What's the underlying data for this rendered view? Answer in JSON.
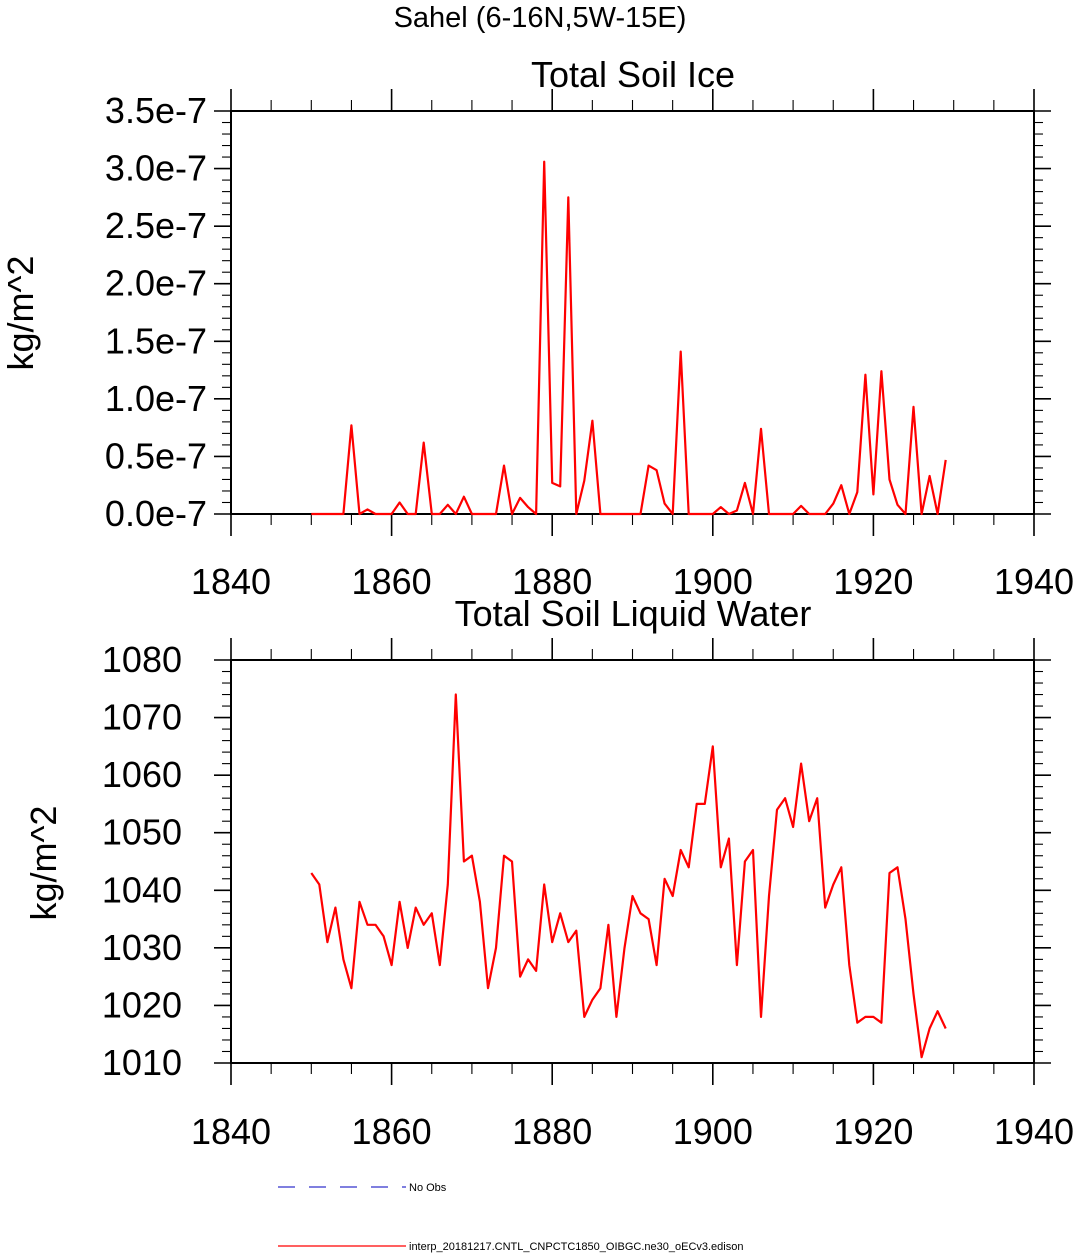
{
  "figure_title": "Sahel (6-16N,5W-15E)",
  "colors": {
    "model": "#ff0000",
    "obs": "#3333cc",
    "axis": "#000000"
  },
  "legend": {
    "obs_label": "No Obs",
    "model_label": "interp_20181217.CNTL_CNPCTC1850_OIBGC.ne30_oECv3.edison"
  },
  "chart_data": [
    {
      "type": "line",
      "title": "Total Soil Ice",
      "ylabel": "kg/m^2",
      "xlabel": "",
      "xlim": [
        1840,
        1940
      ],
      "ylim": [
        0,
        3.5e-07
      ],
      "xticks": [
        1840,
        1860,
        1880,
        1900,
        1920,
        1940
      ],
      "yticks": [
        0,
        5e-08,
        1e-07,
        1.5e-07,
        2e-07,
        2.5e-07,
        3e-07,
        3.5e-07
      ],
      "ytick_labels": [
        "0.0e-7",
        "0.5e-7",
        "1.0e-7",
        "1.5e-7",
        "2.0e-7",
        "2.5e-7",
        "3.0e-7",
        "3.5e-7"
      ],
      "series": [
        {
          "name": "interp_20181217.CNTL_CNPCTC1850_OIBGC.ne30_oECv3.edison",
          "x": [
            1850,
            1851,
            1852,
            1853,
            1854,
            1855,
            1856,
            1857,
            1858,
            1859,
            1860,
            1861,
            1862,
            1863,
            1864,
            1865,
            1866,
            1867,
            1868,
            1869,
            1870,
            1871,
            1872,
            1873,
            1874,
            1875,
            1876,
            1877,
            1878,
            1879,
            1880,
            1881,
            1882,
            1883,
            1884,
            1885,
            1886,
            1887,
            1888,
            1889,
            1890,
            1891,
            1892,
            1893,
            1894,
            1895,
            1896,
            1897,
            1898,
            1899,
            1900,
            1901,
            1902,
            1903,
            1904,
            1905,
            1906,
            1907,
            1908,
            1909,
            1910,
            1911,
            1912,
            1913,
            1914,
            1915,
            1916,
            1917,
            1918,
            1919,
            1920,
            1921,
            1922,
            1923,
            1924,
            1925,
            1926,
            1927,
            1928,
            1929
          ],
          "values": [
            0,
            0,
            0,
            0,
            0,
            7.7e-08,
            0,
            4e-09,
            0,
            0,
            0,
            1e-08,
            0,
            0,
            6.2e-08,
            0,
            0,
            8e-09,
            0,
            1.5e-08,
            0,
            0,
            0,
            0,
            4.2e-08,
            0,
            1.4e-08,
            6e-09,
            0,
            3.06e-07,
            2.7e-08,
            2.4e-08,
            2.75e-07,
            0,
            2.9e-08,
            8.1e-08,
            0,
            0,
            0,
            0,
            0,
            0,
            4.2e-08,
            3.8e-08,
            9e-09,
            0,
            1.41e-07,
            0,
            0,
            0,
            0,
            6e-09,
            0,
            3e-09,
            2.7e-08,
            0,
            7.4e-08,
            0,
            0,
            0,
            0,
            7e-09,
            0,
            0,
            0,
            9e-09,
            2.5e-08,
            0,
            1.9e-08,
            1.21e-07,
            1.7e-08,
            1.24e-07,
            3e-08,
            8e-09,
            0,
            9.3e-08,
            0,
            3.3e-08,
            0,
            4.7e-08
          ]
        }
      ]
    },
    {
      "type": "line",
      "title": "Total Soil Liquid Water",
      "ylabel": "kg/m^2",
      "xlabel": "",
      "xlim": [
        1840,
        1940
      ],
      "ylim": [
        1010,
        1080
      ],
      "xticks": [
        1840,
        1860,
        1880,
        1900,
        1920,
        1940
      ],
      "yticks": [
        1010,
        1020,
        1030,
        1040,
        1050,
        1060,
        1070,
        1080
      ],
      "ytick_labels": [
        "1010",
        "1020",
        "1030",
        "1040",
        "1050",
        "1060",
        "1070",
        "1080"
      ],
      "series": [
        {
          "name": "interp_20181217.CNTL_CNPCTC1850_OIBGC.ne30_oECv3.edison",
          "x": [
            1850,
            1851,
            1852,
            1853,
            1854,
            1855,
            1856,
            1857,
            1858,
            1859,
            1860,
            1861,
            1862,
            1863,
            1864,
            1865,
            1866,
            1867,
            1868,
            1869,
            1870,
            1871,
            1872,
            1873,
            1874,
            1875,
            1876,
            1877,
            1878,
            1879,
            1880,
            1881,
            1882,
            1883,
            1884,
            1885,
            1886,
            1887,
            1888,
            1889,
            1890,
            1891,
            1892,
            1893,
            1894,
            1895,
            1896,
            1897,
            1898,
            1899,
            1900,
            1901,
            1902,
            1903,
            1904,
            1905,
            1906,
            1907,
            1908,
            1909,
            1910,
            1911,
            1912,
            1913,
            1914,
            1915,
            1916,
            1917,
            1918,
            1919,
            1920,
            1921,
            1922,
            1923,
            1924,
            1925,
            1926,
            1927,
            1928,
            1929
          ],
          "values": [
            1043,
            1041,
            1031,
            1037,
            1028,
            1023,
            1038,
            1034,
            1034,
            1032,
            1027,
            1038,
            1030,
            1037,
            1034,
            1036,
            1027,
            1041,
            1074,
            1045,
            1046,
            1038,
            1023,
            1030,
            1046,
            1045,
            1025,
            1028,
            1026,
            1041,
            1031,
            1036,
            1031,
            1033,
            1018,
            1021,
            1023,
            1034,
            1018,
            1030,
            1039,
            1036,
            1035,
            1027,
            1042,
            1039,
            1047,
            1044,
            1055,
            1055,
            1065,
            1044,
            1049,
            1027,
            1045,
            1047,
            1018,
            1039,
            1054,
            1056,
            1051,
            1062,
            1052,
            1056,
            1037,
            1041,
            1044,
            1027,
            1017,
            1018,
            1018,
            1017,
            1043,
            1044,
            1035,
            1022,
            1011,
            1016,
            1019,
            1016
          ]
        }
      ]
    }
  ]
}
